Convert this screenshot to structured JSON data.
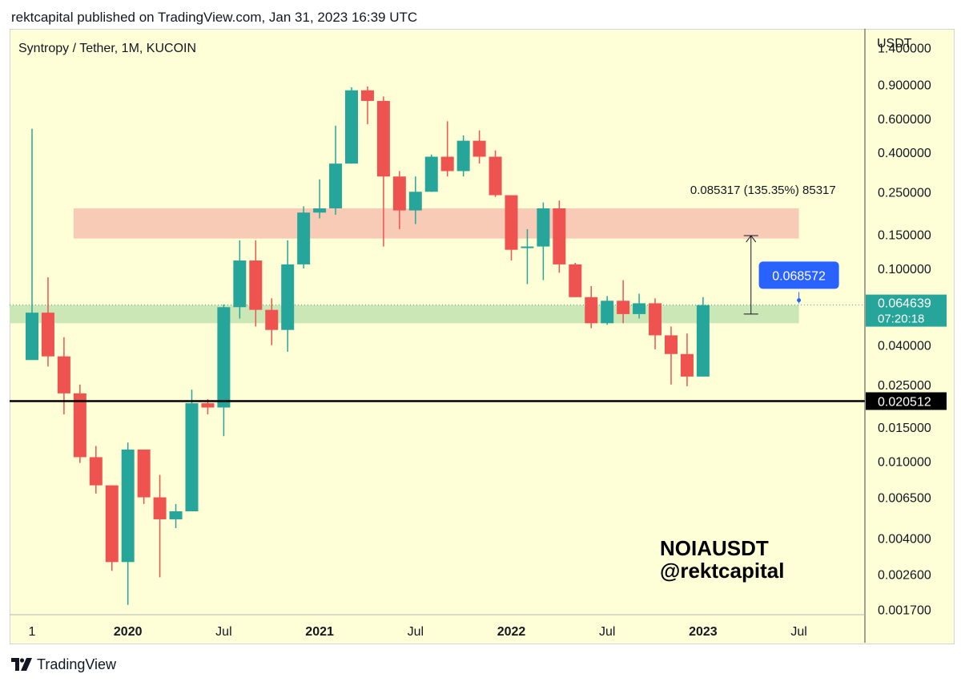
{
  "header": {
    "text": "rektcapital published on TradingView.com, Jan 31, 2023 16:39 UTC"
  },
  "footer": {
    "brand": "TradingView"
  },
  "colors": {
    "background": "#ffffd7",
    "up": "#26a69a",
    "down": "#ef5350",
    "resistance_zone": "#f8c8b4",
    "support_zone": "#c8e6b4",
    "price_badge": "#26a69a",
    "projection_badge": "#2962ff",
    "support_line": "#000000"
  },
  "chart_data": {
    "type": "candlestick",
    "symbol_line": "Syntropy / Tether, 1M, KUCOIN",
    "currency": "USDT",
    "y_scale": "log",
    "ylim": [
      0.0016,
      1.75
    ],
    "y_ticks": [
      {
        "value": 1.4,
        "label": "1.400000"
      },
      {
        "value": 0.9,
        "label": "0.900000"
      },
      {
        "value": 0.6,
        "label": "0.600000"
      },
      {
        "value": 0.4,
        "label": "0.400000"
      },
      {
        "value": 0.25,
        "label": "0.250000"
      },
      {
        "value": 0.15,
        "label": "0.150000"
      },
      {
        "value": 0.1,
        "label": "0.100000"
      },
      {
        "value": 0.04,
        "label": "0.040000"
      },
      {
        "value": 0.025,
        "label": "0.025000"
      },
      {
        "value": 0.015,
        "label": "0.015000"
      },
      {
        "value": 0.01,
        "label": "0.010000"
      },
      {
        "value": 0.0065,
        "label": "0.006500"
      },
      {
        "value": 0.004,
        "label": "0.004000"
      },
      {
        "value": 0.0026,
        "label": "0.002600"
      },
      {
        "value": 0.0017,
        "label": "0.001700"
      }
    ],
    "x_ticks": [
      {
        "index": 0,
        "label": "1",
        "bold": false
      },
      {
        "index": 6,
        "label": "2020",
        "bold": true
      },
      {
        "index": 12,
        "label": "Jul",
        "bold": false
      },
      {
        "index": 18,
        "label": "2021",
        "bold": true
      },
      {
        "index": 24,
        "label": "Jul",
        "bold": false
      },
      {
        "index": 30,
        "label": "2022",
        "bold": true
      },
      {
        "index": 36,
        "label": "Jul",
        "bold": false
      },
      {
        "index": 42,
        "label": "2023",
        "bold": true
      },
      {
        "index": 48,
        "label": "Jul",
        "bold": false
      }
    ],
    "candles": [
      {
        "o": 0.0335,
        "h": 0.53,
        "l": 0.0335,
        "c": 0.059
      },
      {
        "o": 0.059,
        "h": 0.09,
        "l": 0.031,
        "c": 0.035
      },
      {
        "o": 0.035,
        "h": 0.044,
        "l": 0.0175,
        "c": 0.0225
      },
      {
        "o": 0.0225,
        "h": 0.025,
        "l": 0.0098,
        "c": 0.0105
      },
      {
        "o": 0.0105,
        "h": 0.012,
        "l": 0.0068,
        "c": 0.0075
      },
      {
        "o": 0.0075,
        "h": 0.0075,
        "l": 0.0027,
        "c": 0.003
      },
      {
        "o": 0.003,
        "h": 0.0125,
        "l": 0.0018,
        "c": 0.0115
      },
      {
        "o": 0.0115,
        "h": 0.0115,
        "l": 0.006,
        "c": 0.0065
      },
      {
        "o": 0.0065,
        "h": 0.0085,
        "l": 0.0025,
        "c": 0.005
      },
      {
        "o": 0.005,
        "h": 0.006,
        "l": 0.0045,
        "c": 0.0055
      },
      {
        "o": 0.0055,
        "h": 0.0235,
        "l": 0.0055,
        "c": 0.02
      },
      {
        "o": 0.02,
        "h": 0.021,
        "l": 0.0175,
        "c": 0.019
      },
      {
        "o": 0.019,
        "h": 0.065,
        "l": 0.0135,
        "c": 0.063
      },
      {
        "o": 0.063,
        "h": 0.14,
        "l": 0.055,
        "c": 0.11
      },
      {
        "o": 0.11,
        "h": 0.14,
        "l": 0.05,
        "c": 0.061
      },
      {
        "o": 0.061,
        "h": 0.07,
        "l": 0.04,
        "c": 0.048
      },
      {
        "o": 0.048,
        "h": 0.14,
        "l": 0.037,
        "c": 0.105
      },
      {
        "o": 0.105,
        "h": 0.21,
        "l": 0.1,
        "c": 0.195
      },
      {
        "o": 0.195,
        "h": 0.29,
        "l": 0.182,
        "c": 0.205
      },
      {
        "o": 0.205,
        "h": 0.55,
        "l": 0.19,
        "c": 0.35
      },
      {
        "o": 0.35,
        "h": 0.87,
        "l": 0.35,
        "c": 0.84
      },
      {
        "o": 0.84,
        "h": 0.88,
        "l": 0.56,
        "c": 0.74
      },
      {
        "o": 0.74,
        "h": 0.78,
        "l": 0.13,
        "c": 0.3
      },
      {
        "o": 0.3,
        "h": 0.32,
        "l": 0.16,
        "c": 0.2
      },
      {
        "o": 0.2,
        "h": 0.3,
        "l": 0.17,
        "c": 0.25
      },
      {
        "o": 0.25,
        "h": 0.39,
        "l": 0.25,
        "c": 0.38
      },
      {
        "o": 0.38,
        "h": 0.58,
        "l": 0.3,
        "c": 0.32
      },
      {
        "o": 0.32,
        "h": 0.49,
        "l": 0.3,
        "c": 0.46
      },
      {
        "o": 0.46,
        "h": 0.52,
        "l": 0.35,
        "c": 0.38
      },
      {
        "o": 0.38,
        "h": 0.41,
        "l": 0.235,
        "c": 0.24
      },
      {
        "o": 0.24,
        "h": 0.24,
        "l": 0.11,
        "c": 0.125
      },
      {
        "o": 0.13,
        "h": 0.16,
        "l": 0.083,
        "c": 0.13
      },
      {
        "o": 0.13,
        "h": 0.22,
        "l": 0.087,
        "c": 0.205
      },
      {
        "o": 0.205,
        "h": 0.225,
        "l": 0.095,
        "c": 0.105
      },
      {
        "o": 0.105,
        "h": 0.107,
        "l": 0.071,
        "c": 0.071
      },
      {
        "o": 0.071,
        "h": 0.081,
        "l": 0.049,
        "c": 0.052
      },
      {
        "o": 0.052,
        "h": 0.072,
        "l": 0.051,
        "c": 0.068
      },
      {
        "o": 0.068,
        "h": 0.087,
        "l": 0.052,
        "c": 0.058
      },
      {
        "o": 0.058,
        "h": 0.074,
        "l": 0.055,
        "c": 0.066
      },
      {
        "o": 0.066,
        "h": 0.07,
        "l": 0.038,
        "c": 0.045
      },
      {
        "o": 0.045,
        "h": 0.05,
        "l": 0.025,
        "c": 0.036
      },
      {
        "o": 0.036,
        "h": 0.046,
        "l": 0.0245,
        "c": 0.0275
      },
      {
        "o": 0.0275,
        "h": 0.071,
        "l": 0.0275,
        "c": 0.0646
      }
    ],
    "zones": [
      {
        "label": "resistance",
        "from": 0.143,
        "to": 0.205,
        "start_index": 3,
        "end_index": 48
      },
      {
        "label": "support",
        "from": 0.052,
        "to": 0.0645,
        "start_index": 0,
        "end_index": 48
      }
    ],
    "support_line": {
      "value": 0.020512,
      "label": "0.020512"
    },
    "current_price": {
      "value": 0.064639,
      "label": "0.064639",
      "countdown": "07:20:18"
    },
    "projection": {
      "from": 0.058,
      "to": 0.148,
      "at_index": 45,
      "text": "0.085317 (135.35%) 85317"
    },
    "target_marker": {
      "value": 0.068572,
      "label": "0.068572",
      "at_index": 48
    },
    "watermark": {
      "line1": "NOIAUSDT",
      "line2": "@rektcapital"
    }
  }
}
